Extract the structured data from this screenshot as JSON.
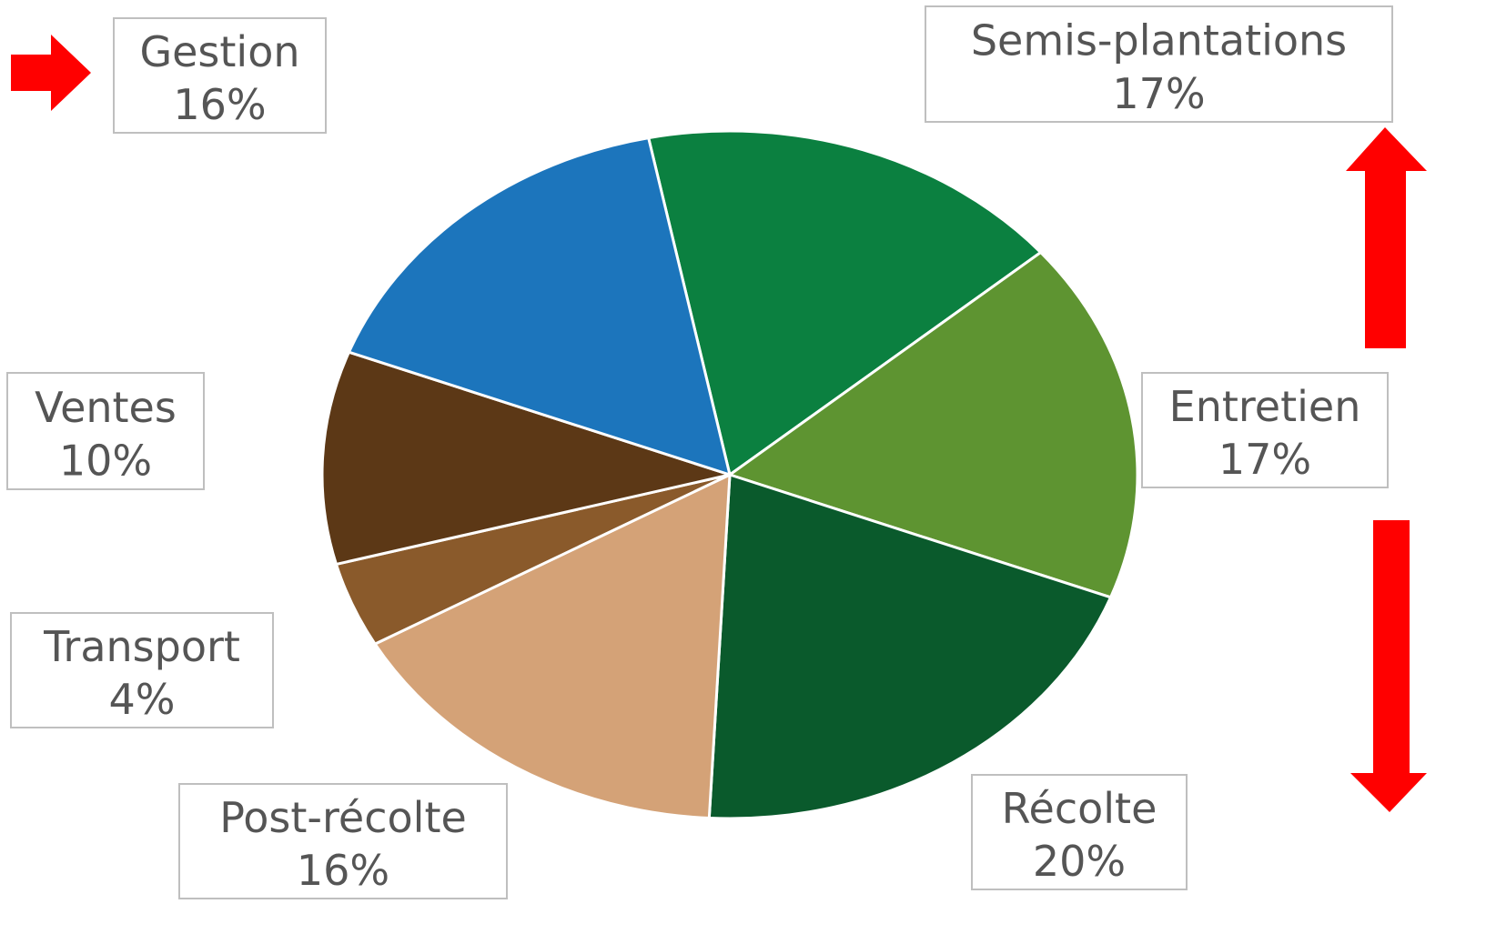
{
  "chart_data": {
    "type": "pie",
    "title": "",
    "slices": [
      {
        "label": "Semis-plantations",
        "value": 17,
        "value_label": "17%",
        "color": "#0b8040"
      },
      {
        "label": "Entretien",
        "value": 17,
        "value_label": "17%",
        "color": "#5e9431"
      },
      {
        "label": "Récolte",
        "value": 20,
        "value_label": "20%",
        "color": "#0a5a2c"
      },
      {
        "label": "Post-récolte",
        "value": 16,
        "value_label": "16%",
        "color": "#d4a277"
      },
      {
        "label": "Transport",
        "value": 4,
        "value_label": "4%",
        "color": "#8a5a2b"
      },
      {
        "label": "Ventes",
        "value": 10,
        "value_label": "10%",
        "color": "#5c3816"
      },
      {
        "label": "Gestion",
        "value": 16,
        "value_label": "16%",
        "color": "#1c75bc"
      }
    ],
    "legend": "none",
    "data_labels": "boxed callouts with category name and percent"
  },
  "annotations": {
    "arrow_color": "#ff0000",
    "arrows": [
      {
        "name": "gestion-arrow",
        "direction": "right"
      },
      {
        "name": "up-arrow",
        "direction": "up"
      },
      {
        "name": "down-arrow",
        "direction": "down"
      }
    ]
  }
}
